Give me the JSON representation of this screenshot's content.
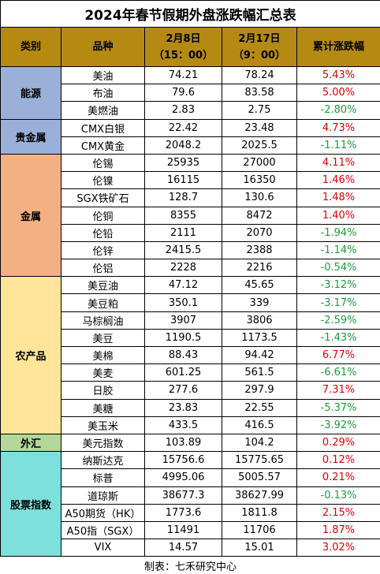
{
  "title": "2024年春节假期外盘涨跌幅汇总表",
  "headers": {
    "category": "类别",
    "product": "品种",
    "date1_line1": "2月8日",
    "date1_line2": "（15：00）",
    "date2_line1": "2月17日",
    "date2_line2": "（9：00）",
    "change": "累计涨跌幅"
  },
  "colors": {
    "header_bg": "#b58a12",
    "positive": "#e00000",
    "negative": "#1a9e3a",
    "energy": "#9bb0d8",
    "precious": "#9bb0d8",
    "metals": "#f4b083",
    "agri": "#fee59a",
    "fx": "#b4d79a",
    "stocks": "#7ee0dc"
  },
  "groups": [
    {
      "category": "能源",
      "color_key": "energy",
      "rows": [
        {
          "name": "美油",
          "v1": "74.21",
          "v2": "78.24",
          "chg": "5.43%",
          "dir": "up"
        },
        {
          "name": "布油",
          "v1": "79.6",
          "v2": "83.58",
          "chg": "5.00%",
          "dir": "up"
        },
        {
          "name": "美燃油",
          "v1": "2.83",
          "v2": "2.75",
          "chg": "-2.80%",
          "dir": "down"
        }
      ]
    },
    {
      "category": "贵金属",
      "color_key": "precious",
      "rows": [
        {
          "name": "CMX白银",
          "v1": "22.42",
          "v2": "23.48",
          "chg": "4.73%",
          "dir": "up"
        },
        {
          "name": "CMX黄金",
          "v1": "2048.2",
          "v2": "2025.5",
          "chg": "-1.11%",
          "dir": "down"
        }
      ]
    },
    {
      "category": "金属",
      "color_key": "metals",
      "rows": [
        {
          "name": "伦锡",
          "v1": "25935",
          "v2": "27000",
          "chg": "4.11%",
          "dir": "up"
        },
        {
          "name": "伦镍",
          "v1": "16115",
          "v2": "16350",
          "chg": "1.46%",
          "dir": "up"
        },
        {
          "name": "SGX铁矿石",
          "v1": "128.7",
          "v2": "130.6",
          "chg": "1.48%",
          "dir": "up"
        },
        {
          "name": "伦铜",
          "v1": "8355",
          "v2": "8472",
          "chg": "1.40%",
          "dir": "up"
        },
        {
          "name": "伦铅",
          "v1": "2111",
          "v2": "2070",
          "chg": "-1.94%",
          "dir": "down"
        },
        {
          "name": "伦锌",
          "v1": "2415.5",
          "v2": "2388",
          "chg": "-1.14%",
          "dir": "down"
        },
        {
          "name": "伦铝",
          "v1": "2228",
          "v2": "2216",
          "chg": "-0.54%",
          "dir": "down"
        }
      ]
    },
    {
      "category": "农产品",
      "color_key": "agri",
      "rows": [
        {
          "name": "美豆油",
          "v1": "47.12",
          "v2": "45.65",
          "chg": "-3.12%",
          "dir": "down"
        },
        {
          "name": "美豆粕",
          "v1": "350.1",
          "v2": "339",
          "chg": "-3.17%",
          "dir": "down"
        },
        {
          "name": "马棕榈油",
          "v1": "3907",
          "v2": "3806",
          "chg": "-2.59%",
          "dir": "down"
        },
        {
          "name": "美豆",
          "v1": "1190.5",
          "v2": "1173.5",
          "chg": "-1.43%",
          "dir": "down"
        },
        {
          "name": "美棉",
          "v1": "88.43",
          "v2": "94.42",
          "chg": "6.77%",
          "dir": "up"
        },
        {
          "name": "美麦",
          "v1": "601.25",
          "v2": "561.5",
          "chg": "-6.61%",
          "dir": "down"
        },
        {
          "name": "日胶",
          "v1": "277.6",
          "v2": "297.9",
          "chg": "7.31%",
          "dir": "up"
        },
        {
          "name": "美糖",
          "v1": "23.83",
          "v2": "22.55",
          "chg": "-5.37%",
          "dir": "down"
        },
        {
          "name": "美玉米",
          "v1": "433.5",
          "v2": "416.5",
          "chg": "-3.92%",
          "dir": "down"
        }
      ]
    },
    {
      "category": "外汇",
      "color_key": "fx",
      "rows": [
        {
          "name": "美元指数",
          "v1": "103.89",
          "v2": "104.2",
          "chg": "0.29%",
          "dir": "up"
        }
      ]
    },
    {
      "category": "股票指数",
      "color_key": "stocks",
      "rows": [
        {
          "name": "纳斯达克",
          "v1": "15756.6",
          "v2": "15775.65",
          "chg": "0.12%",
          "dir": "up"
        },
        {
          "name": "标普",
          "v1": "4995.06",
          "v2": "5005.57",
          "chg": "0.21%",
          "dir": "up"
        },
        {
          "name": "道琼斯",
          "v1": "38677.3",
          "v2": "38627.99",
          "chg": "-0.13%",
          "dir": "down"
        },
        {
          "name": "A50期货（HK）",
          "v1": "1773.6",
          "v2": "1811.8",
          "chg": "2.15%",
          "dir": "up"
        },
        {
          "name": "A50指（SGX）",
          "v1": "11491",
          "v2": "11706",
          "chg": "1.87%",
          "dir": "up"
        },
        {
          "name": "VIX",
          "v1": "14.57",
          "v2": "15.01",
          "chg": "3.02%",
          "dir": "up"
        }
      ]
    }
  ],
  "footer": "制表：七禾研究中心"
}
